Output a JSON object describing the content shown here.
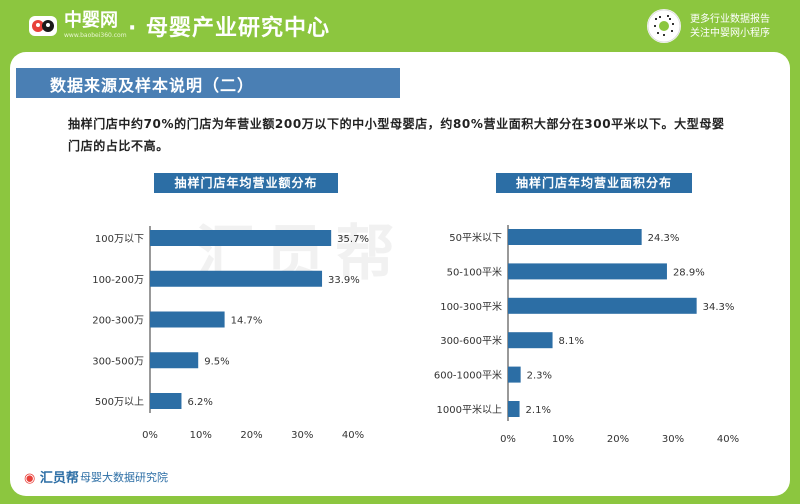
{
  "header": {
    "logo_text": "中婴网",
    "logo_url": "www.baobei360.com",
    "title": "· 母婴产业研究中心",
    "qr_line1": "更多行业数据报告",
    "qr_line2": "关注中婴网小程序"
  },
  "section": {
    "title": "数据来源及样本说明（二）"
  },
  "intro": "抽样门店中约70%的门店为年营业额200万以下的中小型母婴店，约80%营业面积大部分在300平米以下。大型母婴门店的占比不高。",
  "watermark": "汇员帮",
  "footer": {
    "brand": "汇员帮",
    "sub": "母婴大数据研究院"
  },
  "colors": {
    "bar": "#2c6ea5",
    "accent_green": "#8cc63f",
    "banner": "#4a7fb4"
  },
  "chart_data": [
    {
      "type": "bar",
      "orientation": "horizontal",
      "title": "抽样门店年均营业额分布",
      "categories": [
        "100万以下",
        "100-200万",
        "200-300万",
        "300-500万",
        "500万以上"
      ],
      "values": [
        35.7,
        33.9,
        14.7,
        9.5,
        6.2
      ],
      "value_labels": [
        "35.7%",
        "33.9%",
        "14.7%",
        "9.5%",
        "6.2%"
      ],
      "xlim": [
        0,
        40
      ],
      "ticks": [
        "0%",
        "10%",
        "20%",
        "30%",
        "40%"
      ]
    },
    {
      "type": "bar",
      "orientation": "horizontal",
      "title": "抽样门店年均营业面积分布",
      "categories": [
        "50平米以下",
        "50-100平米",
        "100-300平米",
        "300-600平米",
        "600-1000平米",
        "1000平米以上"
      ],
      "values": [
        24.3,
        28.9,
        34.3,
        8.1,
        2.3,
        2.1
      ],
      "value_labels": [
        "24.3%",
        "28.9%",
        "34.3%",
        "8.1%",
        "2.3%",
        "2.1%"
      ],
      "xlim": [
        0,
        40
      ],
      "ticks": [
        "0%",
        "10%",
        "20%",
        "30%",
        "40%"
      ]
    }
  ]
}
